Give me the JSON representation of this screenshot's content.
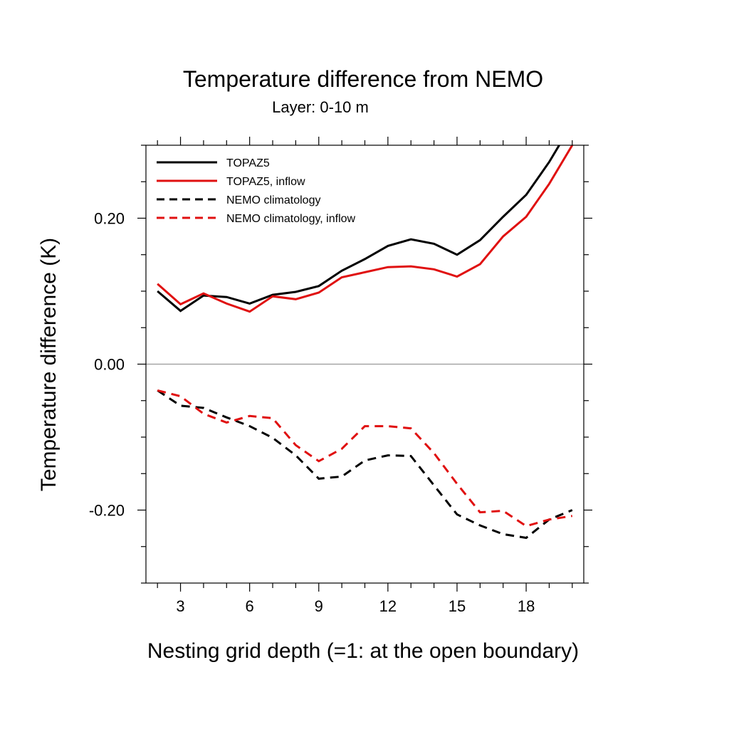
{
  "chart_data": {
    "type": "line",
    "title": "Temperature difference from NEMO",
    "subtitle": "Layer: 0-10 m",
    "xlabel": "Nesting grid depth (=1: at the open boundary)",
    "ylabel": "Temperature difference (K)",
    "xlim": [
      1.5,
      20.5
    ],
    "ylim": [
      -0.3,
      0.3
    ],
    "xticks": [
      3,
      6,
      9,
      12,
      15,
      18
    ],
    "xtick_labels": [
      "3",
      "6",
      "9",
      "12",
      "15",
      "18"
    ],
    "yticks": [
      0.2,
      0.0,
      -0.2
    ],
    "ytick_labels": [
      "0.20",
      "0.00",
      "-0.20"
    ],
    "zero_line": true,
    "legend_position": "top-left",
    "x": [
      2,
      3,
      4,
      5,
      6,
      7,
      8,
      9,
      10,
      11,
      12,
      13,
      14,
      15,
      16,
      17,
      18,
      19,
      20
    ],
    "series": [
      {
        "name": "TOPAZ5",
        "color": "#000000",
        "dash": "solid",
        "values": [
          0.1,
          0.073,
          0.094,
          0.092,
          0.083,
          0.095,
          0.099,
          0.107,
          0.128,
          0.144,
          0.162,
          0.171,
          0.165,
          0.15,
          0.17,
          0.202,
          0.232,
          0.277,
          0.33
        ]
      },
      {
        "name": "TOPAZ5, inflow",
        "color": "#e01010",
        "dash": "solid",
        "values": [
          0.11,
          0.082,
          0.097,
          0.083,
          0.072,
          0.093,
          0.089,
          0.098,
          0.119,
          0.126,
          0.133,
          0.134,
          0.13,
          0.12,
          0.137,
          0.175,
          0.202,
          0.247,
          0.3
        ]
      },
      {
        "name": "NEMO climatology",
        "color": "#000000",
        "dash": "dashed",
        "values": [
          -0.036,
          -0.057,
          -0.06,
          -0.073,
          -0.085,
          -0.101,
          -0.125,
          -0.157,
          -0.154,
          -0.132,
          -0.125,
          -0.126,
          -0.166,
          -0.206,
          -0.221,
          -0.233,
          -0.238,
          -0.213,
          -0.2
        ]
      },
      {
        "name": "NEMO climatology, inflow",
        "color": "#e01010",
        "dash": "dashed",
        "values": [
          -0.036,
          -0.044,
          -0.068,
          -0.08,
          -0.071,
          -0.074,
          -0.111,
          -0.133,
          -0.116,
          -0.085,
          -0.085,
          -0.088,
          -0.122,
          -0.164,
          -0.203,
          -0.201,
          -0.222,
          -0.213,
          -0.208
        ]
      }
    ]
  }
}
